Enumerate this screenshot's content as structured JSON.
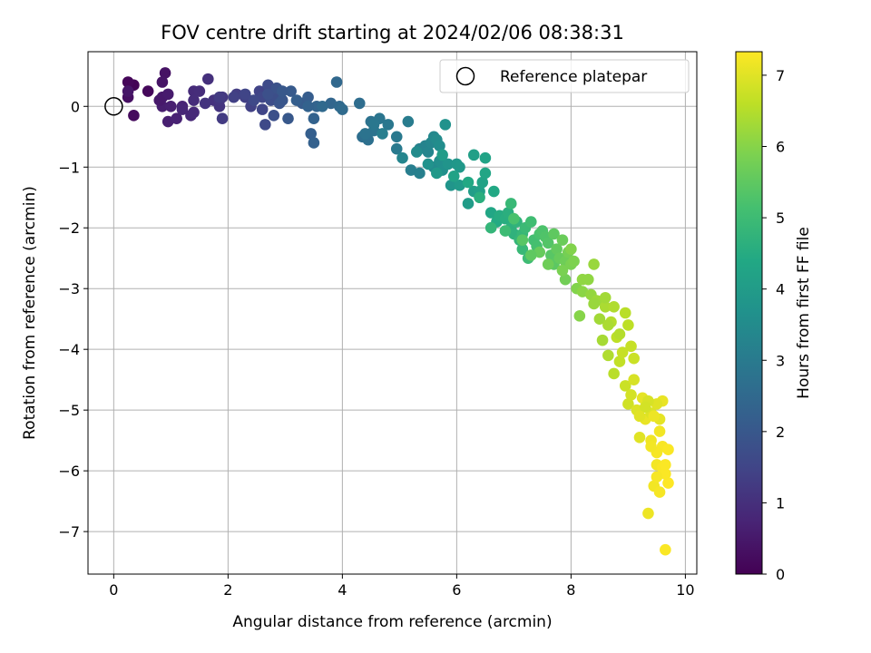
{
  "chart_data": {
    "type": "scatter",
    "title": "FOV centre drift starting at 2024/02/06 08:38:31",
    "xlabel": "Angular distance from reference (arcmin)",
    "ylabel": "Rotation from reference (arcmin)",
    "xlim": [
      -0.45,
      10.2
    ],
    "ylim": [
      -7.7,
      0.9
    ],
    "xticks": [
      0,
      2,
      4,
      6,
      8,
      10
    ],
    "xtick_labels": [
      "0",
      "2",
      "4",
      "6",
      "8",
      "10"
    ],
    "yticks": [
      0,
      -1,
      -2,
      -3,
      -4,
      -5,
      -6,
      -7
    ],
    "ytick_labels": [
      "0",
      "−1",
      "−2",
      "−3",
      "−4",
      "−5",
      "−6",
      "−7"
    ],
    "grid": true,
    "legend": {
      "placement": "top-right",
      "entries": [
        "Reference platepar"
      ]
    },
    "reference_point": {
      "x": 0,
      "y": 0,
      "label": "Reference platepar"
    },
    "colorbar": {
      "label": "Hours from first FF file",
      "colormap": "viridis",
      "range": [
        0,
        7.33
      ],
      "ticks": [
        0,
        1,
        2,
        3,
        4,
        5,
        6,
        7
      ],
      "tick_labels": [
        "0",
        "1",
        "2",
        "3",
        "4",
        "5",
        "6",
        "7"
      ]
    },
    "points": [
      [
        0.35,
        0.35,
        0.05
      ],
      [
        0.25,
        0.4,
        0.1
      ],
      [
        0.6,
        0.25,
        0.15
      ],
      [
        0.35,
        -0.15,
        0.2
      ],
      [
        0.25,
        0.15,
        0.3
      ],
      [
        0.9,
        0.55,
        0.35
      ],
      [
        0.85,
        0.4,
        0.4
      ],
      [
        0.25,
        0.25,
        0.45
      ],
      [
        0.85,
        0.15,
        0.5
      ],
      [
        0.95,
        0.2,
        0.55
      ],
      [
        0.85,
        0.0,
        0.6
      ],
      [
        0.95,
        -0.25,
        0.65
      ],
      [
        1.1,
        -0.2,
        0.7
      ],
      [
        1.2,
        0.0,
        0.75
      ],
      [
        1.35,
        -0.15,
        0.8
      ],
      [
        1.4,
        -0.1,
        0.85
      ],
      [
        1.4,
        0.25,
        0.9
      ],
      [
        1.5,
        0.25,
        0.95
      ],
      [
        1.65,
        0.45,
        1.0
      ],
      [
        1.75,
        0.1,
        1.05
      ],
      [
        1.85,
        0.0,
        1.1
      ],
      [
        1.85,
        0.1,
        1.15
      ],
      [
        1.9,
        0.15,
        1.2
      ],
      [
        1.9,
        -0.2,
        1.25
      ],
      [
        2.15,
        0.2,
        1.3
      ],
      [
        2.3,
        0.15,
        1.35
      ],
      [
        2.4,
        0.0,
        1.4
      ],
      [
        2.55,
        0.25,
        1.45
      ],
      [
        2.6,
        -0.05,
        1.5
      ],
      [
        2.6,
        0.15,
        1.55
      ],
      [
        2.65,
        -0.3,
        1.6
      ],
      [
        2.7,
        0.35,
        1.65
      ],
      [
        2.75,
        0.1,
        1.7
      ],
      [
        2.8,
        0.2,
        1.75
      ],
      [
        2.8,
        -0.15,
        1.8
      ],
      [
        2.85,
        0.3,
        1.85
      ],
      [
        2.9,
        0.05,
        1.9
      ],
      [
        2.95,
        0.1,
        1.95
      ],
      [
        3.05,
        -0.2,
        2.0
      ],
      [
        3.1,
        0.25,
        2.05
      ],
      [
        3.3,
        0.05,
        2.1
      ],
      [
        3.4,
        0.15,
        2.15
      ],
      [
        3.45,
        -0.45,
        2.2
      ],
      [
        3.5,
        -0.6,
        2.25
      ],
      [
        3.5,
        -0.2,
        2.3
      ],
      [
        3.55,
        0.0,
        2.35
      ],
      [
        3.8,
        0.05,
        2.4
      ],
      [
        3.9,
        0.4,
        2.45
      ],
      [
        3.95,
        0.0,
        2.5
      ],
      [
        4.0,
        -0.05,
        2.55
      ],
      [
        4.3,
        0.05,
        2.6
      ],
      [
        4.35,
        -0.5,
        2.65
      ],
      [
        4.45,
        -0.55,
        2.7
      ],
      [
        4.5,
        -0.25,
        2.75
      ],
      [
        4.55,
        -0.4,
        2.8
      ],
      [
        4.65,
        -0.2,
        2.85
      ],
      [
        4.8,
        -0.3,
        2.9
      ],
      [
        4.95,
        -0.5,
        2.95
      ],
      [
        4.95,
        -0.7,
        3.0
      ],
      [
        5.15,
        -0.25,
        3.05
      ],
      [
        5.2,
        -1.05,
        3.1
      ],
      [
        5.35,
        -1.1,
        3.15
      ],
      [
        5.35,
        -0.7,
        3.2
      ],
      [
        5.45,
        -0.65,
        3.25
      ],
      [
        5.5,
        -0.75,
        3.3
      ],
      [
        5.55,
        -0.6,
        3.35
      ],
      [
        5.6,
        -0.5,
        3.4
      ],
      [
        5.6,
        -1.0,
        3.45
      ],
      [
        5.65,
        -0.55,
        3.5
      ],
      [
        5.7,
        -0.65,
        3.55
      ],
      [
        5.7,
        -0.9,
        3.6
      ],
      [
        5.75,
        -1.05,
        3.65
      ],
      [
        5.8,
        -0.3,
        3.7
      ],
      [
        5.85,
        -0.95,
        3.75
      ],
      [
        5.9,
        -1.3,
        3.8
      ],
      [
        6.0,
        -0.95,
        3.85
      ],
      [
        6.05,
        -1.0,
        3.9
      ],
      [
        6.05,
        -1.3,
        3.95
      ],
      [
        6.2,
        -1.6,
        4.0
      ],
      [
        6.3,
        -1.4,
        4.05
      ],
      [
        6.3,
        -0.8,
        4.1
      ],
      [
        6.4,
        -1.4,
        4.15
      ],
      [
        6.45,
        -1.25,
        4.2
      ],
      [
        6.5,
        -0.85,
        4.25
      ],
      [
        6.5,
        -1.1,
        4.3
      ],
      [
        6.6,
        -1.75,
        4.35
      ],
      [
        6.65,
        -1.4,
        4.4
      ],
      [
        6.7,
        -1.9,
        4.45
      ],
      [
        6.75,
        -1.8,
        4.5
      ],
      [
        6.85,
        -1.85,
        4.55
      ],
      [
        6.9,
        -1.75,
        4.6
      ],
      [
        6.95,
        -2.0,
        4.65
      ],
      [
        7.0,
        -2.1,
        4.7
      ],
      [
        7.05,
        -1.9,
        4.75
      ],
      [
        7.1,
        -2.2,
        4.8
      ],
      [
        7.15,
        -2.1,
        4.85
      ],
      [
        7.15,
        -2.35,
        4.9
      ],
      [
        7.2,
        -2.0,
        4.95
      ],
      [
        7.25,
        -2.5,
        5.0
      ],
      [
        7.3,
        -1.9,
        5.05
      ],
      [
        7.35,
        -2.2,
        5.1
      ],
      [
        7.4,
        -2.3,
        5.15
      ],
      [
        7.45,
        -2.1,
        5.2
      ],
      [
        7.5,
        -2.05,
        5.25
      ],
      [
        7.55,
        -2.15,
        5.3
      ],
      [
        7.6,
        -2.25,
        5.35
      ],
      [
        7.65,
        -2.45,
        5.4
      ],
      [
        7.7,
        -2.6,
        5.45
      ],
      [
        7.7,
        -2.1,
        5.5
      ],
      [
        7.75,
        -2.35,
        5.55
      ],
      [
        7.8,
        -2.5,
        5.6
      ],
      [
        7.85,
        -2.2,
        5.65
      ],
      [
        7.9,
        -2.55,
        5.7
      ],
      [
        7.9,
        -2.85,
        5.75
      ],
      [
        7.95,
        -2.4,
        5.8
      ],
      [
        8.0,
        -2.6,
        5.85
      ],
      [
        8.05,
        -2.55,
        5.9
      ],
      [
        8.1,
        -3.0,
        5.95
      ],
      [
        8.15,
        -3.45,
        6.0
      ],
      [
        8.2,
        -3.05,
        6.05
      ],
      [
        8.3,
        -2.85,
        6.1
      ],
      [
        8.35,
        -3.1,
        6.15
      ],
      [
        8.4,
        -2.6,
        6.2
      ],
      [
        8.45,
        -3.2,
        6.25
      ],
      [
        8.5,
        -3.5,
        6.3
      ],
      [
        8.55,
        -3.85,
        6.35
      ],
      [
        8.6,
        -3.3,
        6.4
      ],
      [
        8.65,
        -4.1,
        6.45
      ],
      [
        8.7,
        -3.55,
        6.5
      ],
      [
        8.75,
        -4.4,
        6.55
      ],
      [
        8.8,
        -3.8,
        6.6
      ],
      [
        8.85,
        -4.2,
        6.65
      ],
      [
        8.9,
        -4.05,
        6.7
      ],
      [
        8.95,
        -4.6,
        6.75
      ],
      [
        9.0,
        -4.9,
        6.8
      ],
      [
        9.05,
        -4.75,
        6.85
      ],
      [
        9.1,
        -4.5,
        6.9
      ],
      [
        9.15,
        -5.0,
        6.95
      ],
      [
        9.2,
        -5.45,
        7.0
      ],
      [
        9.25,
        -4.8,
        7.05
      ],
      [
        9.3,
        -5.15,
        7.1
      ],
      [
        9.35,
        -6.7,
        7.15
      ],
      [
        9.4,
        -5.5,
        7.18
      ],
      [
        9.45,
        -6.25,
        7.2
      ],
      [
        9.5,
        -5.9,
        7.22
      ],
      [
        9.55,
        -6.35,
        7.25
      ],
      [
        9.6,
        -5.6,
        7.27
      ],
      [
        9.65,
        -7.3,
        7.3
      ],
      [
        9.7,
        -6.2,
        7.33
      ],
      [
        9.6,
        -4.85,
        7.1
      ],
      [
        9.55,
        -5.15,
        7.05
      ],
      [
        9.5,
        -4.9,
        7.0
      ],
      [
        9.4,
        -5.05,
        6.95
      ],
      [
        9.35,
        -4.85,
        6.9
      ],
      [
        9.3,
        -4.95,
        6.85
      ],
      [
        9.1,
        -4.15,
        6.75
      ],
      [
        9.05,
        -3.95,
        6.7
      ],
      [
        9.0,
        -3.6,
        6.6
      ],
      [
        8.95,
        -3.4,
        6.55
      ],
      [
        8.85,
        -3.75,
        6.5
      ],
      [
        8.75,
        -3.3,
        6.45
      ],
      [
        8.65,
        -3.6,
        6.4
      ],
      [
        8.6,
        -3.15,
        6.3
      ],
      [
        8.4,
        -3.25,
        6.2
      ],
      [
        8.2,
        -2.85,
        6.1
      ],
      [
        8.0,
        -2.35,
        5.95
      ],
      [
        7.85,
        -2.7,
        5.85
      ],
      [
        7.6,
        -2.6,
        5.7
      ],
      [
        7.45,
        -2.4,
        5.6
      ],
      [
        7.3,
        -2.45,
        5.5
      ],
      [
        7.15,
        -2.2,
        5.4
      ],
      [
        7.0,
        -1.85,
        5.2
      ],
      [
        6.85,
        -2.05,
        5.0
      ],
      [
        6.95,
        -1.6,
        4.9
      ],
      [
        6.6,
        -2.0,
        4.8
      ],
      [
        6.4,
        -1.5,
        4.6
      ],
      [
        6.2,
        -1.25,
        4.4
      ],
      [
        5.95,
        -1.15,
        4.2
      ],
      [
        5.75,
        -0.8,
        4.0
      ],
      [
        5.65,
        -1.1,
        3.9
      ],
      [
        5.5,
        -0.95,
        3.7
      ],
      [
        5.3,
        -0.75,
        3.5
      ],
      [
        5.05,
        -0.85,
        3.3
      ],
      [
        4.7,
        -0.45,
        3.1
      ],
      [
        4.55,
        -0.3,
        2.9
      ],
      [
        4.4,
        -0.45,
        2.8
      ],
      [
        3.65,
        0.0,
        2.5
      ],
      [
        3.4,
        0.0,
        2.3
      ],
      [
        3.2,
        0.1,
        2.2
      ],
      [
        2.95,
        0.25,
        2.0
      ],
      [
        2.7,
        0.2,
        1.8
      ],
      [
        2.45,
        0.1,
        1.6
      ],
      [
        2.3,
        0.2,
        1.5
      ],
      [
        2.1,
        0.15,
        1.4
      ],
      [
        1.85,
        0.15,
        1.25
      ],
      [
        1.6,
        0.05,
        1.1
      ],
      [
        1.4,
        0.1,
        0.95
      ],
      [
        1.2,
        -0.05,
        0.8
      ],
      [
        1.0,
        0.0,
        0.65
      ],
      [
        0.8,
        0.1,
        0.5
      ],
      [
        9.6,
        -5.95,
        7.28
      ],
      [
        9.5,
        -5.7,
        7.25
      ],
      [
        9.55,
        -5.35,
        7.2
      ],
      [
        9.45,
        -5.1,
        7.15
      ],
      [
        9.4,
        -5.6,
        7.2
      ],
      [
        9.65,
        -6.05,
        7.3
      ],
      [
        9.5,
        -6.1,
        7.25
      ],
      [
        9.7,
        -5.65,
        7.3
      ],
      [
        9.65,
        -5.9,
        7.3
      ],
      [
        9.2,
        -5.1,
        7.0
      ]
    ]
  }
}
